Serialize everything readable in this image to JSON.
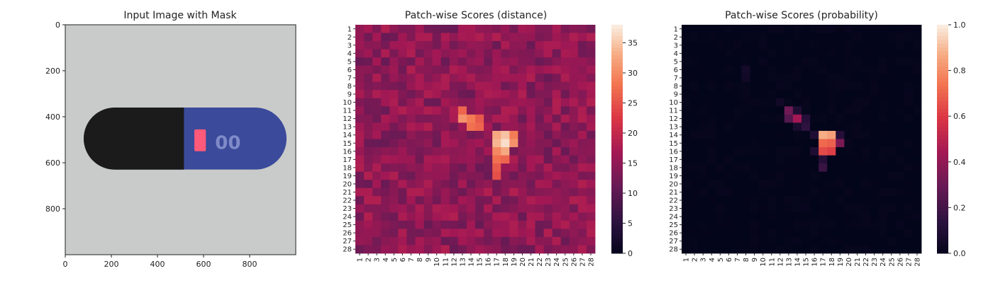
{
  "chart_data": [
    {
      "type": "image",
      "title": "Input Image with Mask",
      "xlim": [
        0,
        1000
      ],
      "ylim": [
        1000,
        0
      ],
      "xticks": [
        0,
        200,
        400,
        600,
        800
      ],
      "yticks": [
        0,
        200,
        400,
        600,
        800
      ],
      "image": {
        "background": "#c9cbca",
        "capsule_black": "#1b1b1b",
        "capsule_blue": "#3b4a9a",
        "mask_color": "#ff5a7a",
        "printed_text": "500"
      }
    },
    {
      "type": "heatmap",
      "title": "Patch-wise Scores (distance)",
      "rows": [
        1,
        2,
        3,
        4,
        5,
        6,
        7,
        8,
        9,
        10,
        11,
        12,
        13,
        14,
        15,
        16,
        17,
        18,
        19,
        20,
        21,
        22,
        23,
        24,
        25,
        26,
        27,
        28
      ],
      "cols": [
        1,
        2,
        3,
        4,
        5,
        6,
        7,
        8,
        9,
        10,
        11,
        12,
        13,
        14,
        15,
        16,
        17,
        18,
        19,
        20,
        21,
        22,
        23,
        24,
        25,
        26,
        27,
        28
      ],
      "vmin": 0,
      "vmax": 38,
      "colorbar_ticks": [
        0,
        5,
        10,
        15,
        20,
        25,
        30,
        35
      ],
      "colormap": "rocket",
      "base_value": 15,
      "hotspots": [
        {
          "row": 15,
          "col": 18,
          "value": 37
        },
        {
          "row": 14,
          "col": 17,
          "value": 33
        },
        {
          "row": 15,
          "col": 17,
          "value": 34
        },
        {
          "row": 14,
          "col": 18,
          "value": 35
        },
        {
          "row": 16,
          "col": 18,
          "value": 33
        },
        {
          "row": 15,
          "col": 19,
          "value": 31
        },
        {
          "row": 16,
          "col": 17,
          "value": 30
        },
        {
          "row": 14,
          "col": 19,
          "value": 29
        },
        {
          "row": 12,
          "col": 13,
          "value": 31
        },
        {
          "row": 12,
          "col": 14,
          "value": 29
        },
        {
          "row": 11,
          "col": 13,
          "value": 27
        },
        {
          "row": 13,
          "col": 14,
          "value": 28
        },
        {
          "row": 13,
          "col": 15,
          "value": 27
        },
        {
          "row": 12,
          "col": 15,
          "value": 26
        },
        {
          "row": 17,
          "col": 17,
          "value": 28
        },
        {
          "row": 17,
          "col": 18,
          "value": 27
        },
        {
          "row": 18,
          "col": 17,
          "value": 26
        },
        {
          "row": 19,
          "col": 17,
          "value": 25
        }
      ]
    },
    {
      "type": "heatmap",
      "title": "Patch-wise Scores (probability)",
      "rows": [
        1,
        2,
        3,
        4,
        5,
        6,
        7,
        8,
        9,
        10,
        11,
        12,
        13,
        14,
        15,
        16,
        17,
        18,
        19,
        20,
        21,
        22,
        23,
        24,
        25,
        26,
        27,
        28
      ],
      "cols": [
        1,
        2,
        3,
        4,
        5,
        6,
        7,
        8,
        9,
        10,
        11,
        12,
        13,
        14,
        15,
        16,
        17,
        18,
        19,
        20,
        21,
        22,
        23,
        24,
        25,
        26,
        27,
        28
      ],
      "vmin": 0.0,
      "vmax": 1.0,
      "colorbar_ticks": [
        0.0,
        0.2,
        0.4,
        0.6,
        0.8,
        1.0
      ],
      "colormap": "rocket",
      "base_value": 0.0,
      "hotspots": [
        {
          "row": 14,
          "col": 17,
          "value": 0.88
        },
        {
          "row": 14,
          "col": 18,
          "value": 0.85
        },
        {
          "row": 15,
          "col": 17,
          "value": 0.72
        },
        {
          "row": 15,
          "col": 18,
          "value": 0.7
        },
        {
          "row": 16,
          "col": 17,
          "value": 0.65
        },
        {
          "row": 16,
          "col": 18,
          "value": 0.62
        },
        {
          "row": 15,
          "col": 19,
          "value": 0.35
        },
        {
          "row": 12,
          "col": 14,
          "value": 0.45
        },
        {
          "row": 11,
          "col": 13,
          "value": 0.32
        },
        {
          "row": 12,
          "col": 13,
          "value": 0.25
        },
        {
          "row": 13,
          "col": 15,
          "value": 0.15
        },
        {
          "row": 18,
          "col": 17,
          "value": 0.18
        },
        {
          "row": 12,
          "col": 15,
          "value": 0.12
        },
        {
          "row": 11,
          "col": 14,
          "value": 0.1
        },
        {
          "row": 13,
          "col": 14,
          "value": 0.08
        },
        {
          "row": 14,
          "col": 16,
          "value": 0.1
        },
        {
          "row": 17,
          "col": 17,
          "value": 0.12
        },
        {
          "row": 16,
          "col": 16,
          "value": 0.1
        },
        {
          "row": 14,
          "col": 19,
          "value": 0.12
        },
        {
          "row": 6,
          "col": 8,
          "value": 0.06
        },
        {
          "row": 7,
          "col": 8,
          "value": 0.05
        },
        {
          "row": 10,
          "col": 12,
          "value": 0.05
        }
      ]
    }
  ]
}
